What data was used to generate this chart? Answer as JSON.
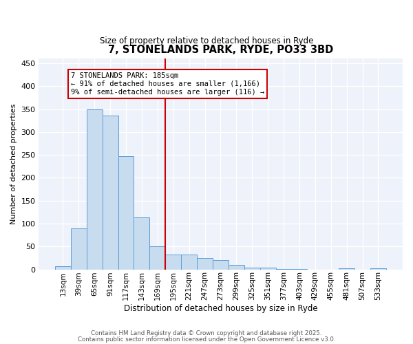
{
  "title": "7, STONELANDS PARK, RYDE, PO33 3BD",
  "subtitle": "Size of property relative to detached houses in Ryde",
  "xlabel": "Distribution of detached houses by size in Ryde",
  "ylabel": "Number of detached properties",
  "bar_labels": [
    "13sqm",
    "39sqm",
    "65sqm",
    "91sqm",
    "117sqm",
    "143sqm",
    "169sqm",
    "195sqm",
    "221sqm",
    "247sqm",
    "273sqm",
    "299sqm",
    "325sqm",
    "351sqm",
    "377sqm",
    "403sqm",
    "429sqm",
    "455sqm",
    "481sqm",
    "507sqm",
    "533sqm"
  ],
  "all_bar_values": [
    7,
    89,
    349,
    336,
    247,
    113,
    50,
    33,
    33,
    25,
    20,
    10,
    4,
    4,
    1,
    1,
    0,
    0,
    3,
    0,
    2
  ],
  "bar_color": "#c8dcf0",
  "bar_edge_color": "#5b9bd5",
  "vline_x": 6.5,
  "vline_color": "#cc0000",
  "annotation_box_text": "7 STONELANDS PARK: 185sqm\n← 91% of detached houses are smaller (1,166)\n9% of semi-detached houses are larger (116) →",
  "annotation_box_color": "#cc0000",
  "ylim": [
    0,
    460
  ],
  "yticks": [
    0,
    50,
    100,
    150,
    200,
    250,
    300,
    350,
    400,
    450
  ],
  "bg_color": "#eef2fa",
  "grid_color": "#ffffff",
  "footer_line1": "Contains HM Land Registry data © Crown copyright and database right 2025.",
  "footer_line2": "Contains public sector information licensed under the Open Government Licence v3.0."
}
